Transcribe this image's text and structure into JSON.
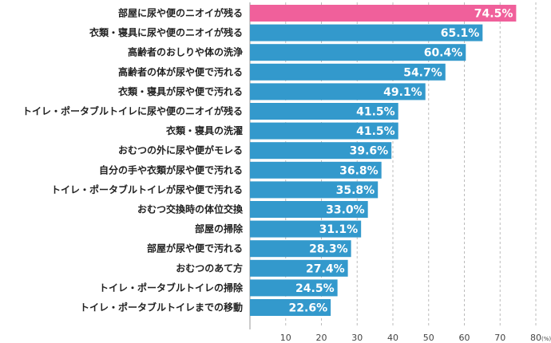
{
  "chart_data": {
    "type": "bar",
    "orientation": "horizontal",
    "categories": [
      "部屋に尿や便のニオイが残る",
      "衣類・寝具に尿や便のニオイが残る",
      "高齢者のおしりや体の洗浄",
      "高齢者の体が尿や便で汚れる",
      "衣類・寝具が尿や便で汚れる",
      "トイレ・ポータブルトイレに尿や便のニオイが残る",
      "衣類・寝具の洗濯",
      "おむつの外に尿や便がモレる",
      "自分の手や衣類が尿や便で汚れる",
      "トイレ・ポータブルトイレが尿や便で汚れる",
      "おむつ交換時の体位交換",
      "部屋の掃除",
      "部屋が尿や便で汚れる",
      "おむつのあて方",
      "トイレ・ポータブルトイレの掃除",
      "トイレ・ポータブルトイレまでの移動"
    ],
    "values": [
      74.5,
      65.1,
      60.4,
      54.7,
      49.1,
      41.5,
      41.5,
      39.6,
      36.8,
      35.8,
      33.0,
      31.1,
      28.3,
      27.4,
      24.5,
      22.6
    ],
    "value_labels": [
      "74.5%",
      "65.1%",
      "60.4%",
      "54.7%",
      "49.1%",
      "41.5%",
      "41.5%",
      "39.6%",
      "36.8%",
      "35.8%",
      "33.0%",
      "31.1%",
      "28.3%",
      "27.4%",
      "24.5%",
      "22.6%"
    ],
    "xlim": [
      0,
      80
    ],
    "x_ticks": [
      "10",
      "20",
      "30",
      "40",
      "50",
      "60",
      "70",
      "80"
    ],
    "x_unit": "(%)",
    "grid": true,
    "colors": {
      "highlight": "#f0609b",
      "bar": "#3399cc",
      "grid": "#bbbbbb"
    },
    "highlight_index": 0
  }
}
